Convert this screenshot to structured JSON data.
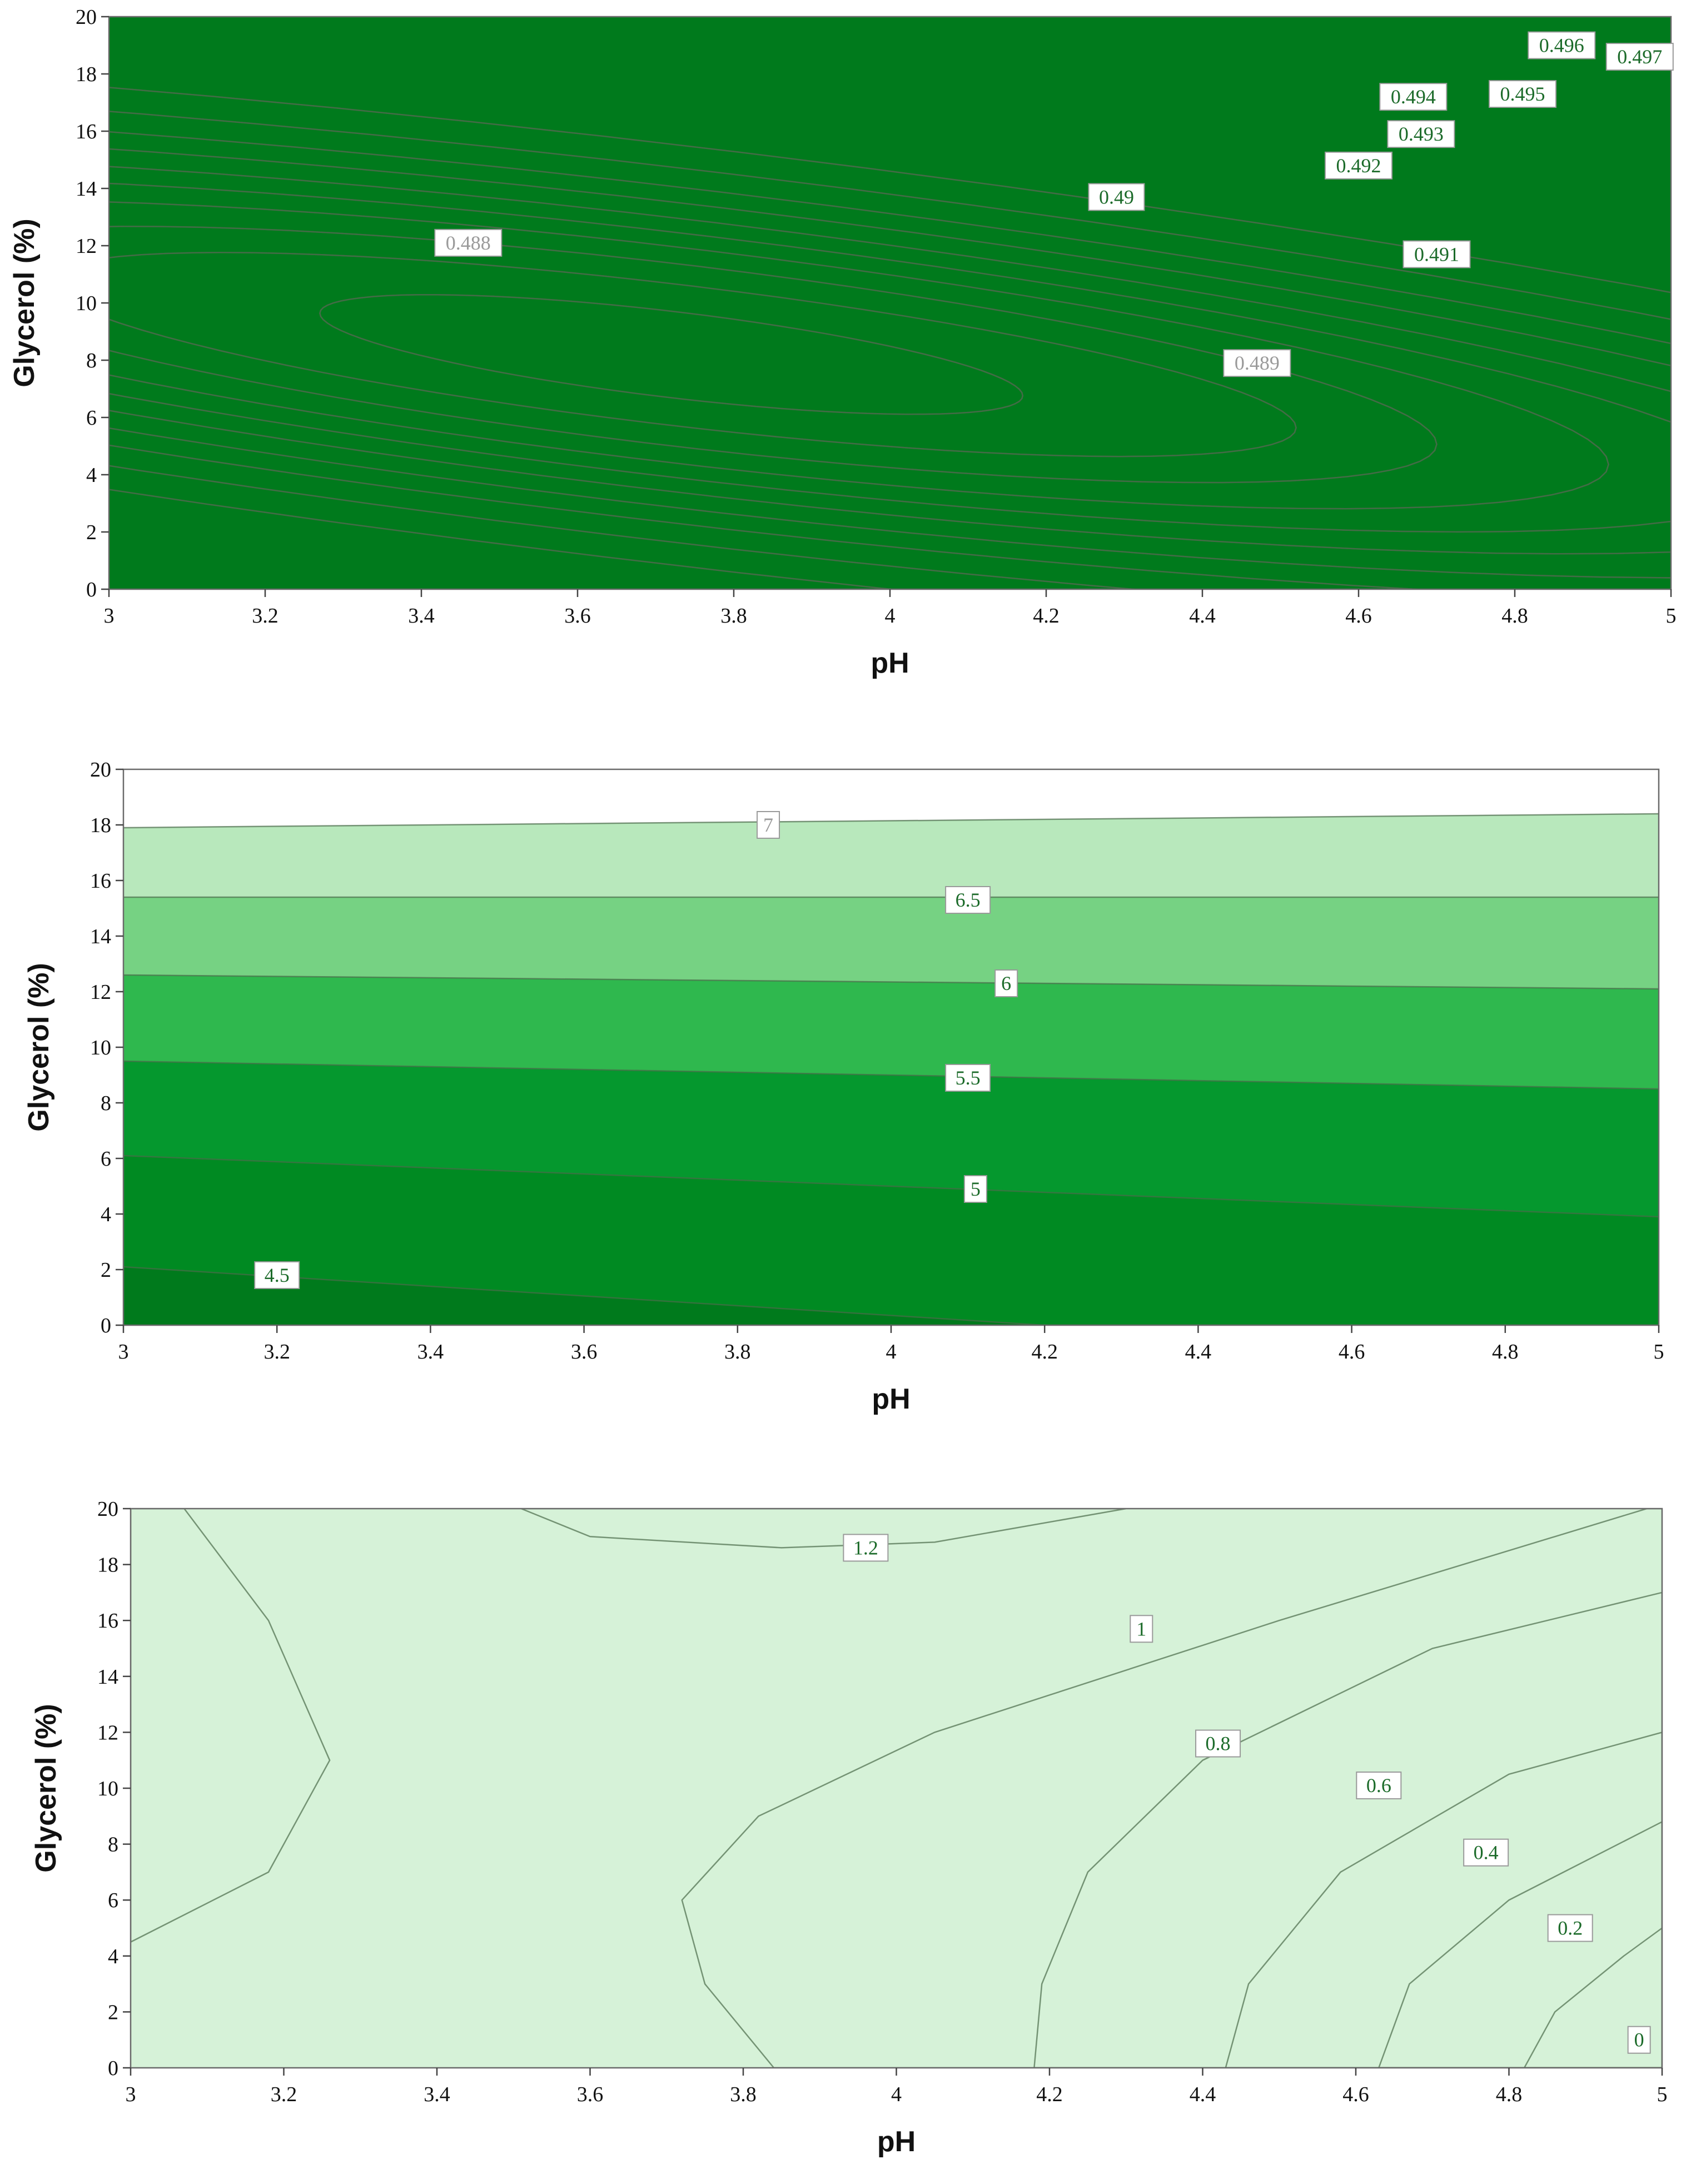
{
  "chart_data": [
    {
      "type": "contour",
      "title": "",
      "xlabel": "pH",
      "ylabel": "Glycerol (%)",
      "xlim": [
        3,
        5
      ],
      "ylim": [
        0,
        20
      ],
      "x_ticks": [
        "3",
        "3.2",
        "3.4",
        "3.6",
        "3.8",
        "4",
        "4.2",
        "4.4",
        "4.6",
        "4.8",
        "5"
      ],
      "y_ticks": [
        "0",
        "2",
        "4",
        "6",
        "8",
        "10",
        "12",
        "14",
        "16",
        "18",
        "20"
      ],
      "levels": [
        0.488,
        0.489,
        0.49,
        0.491,
        0.492,
        0.493,
        0.494,
        0.495,
        0.496,
        0.497
      ],
      "contour_labels": [
        {
          "text": "0.488",
          "x": 3.46,
          "y": 12.1
        },
        {
          "text": "0.489",
          "x": 4.47,
          "y": 7.9
        },
        {
          "text": "0.49",
          "x": 4.29,
          "y": 13.7
        },
        {
          "text": "0.491",
          "x": 4.7,
          "y": 11.7
        },
        {
          "text": "0.492",
          "x": 4.6,
          "y": 14.8
        },
        {
          "text": "0.493",
          "x": 4.68,
          "y": 15.9
        },
        {
          "text": "0.494",
          "x": 4.67,
          "y": 17.2
        },
        {
          "text": "0.495",
          "x": 4.81,
          "y": 17.3
        },
        {
          "text": "0.496",
          "x": 4.86,
          "y": 19.0
        },
        {
          "text": "0.497",
          "x": 4.96,
          "y": 18.6
        }
      ]
    },
    {
      "type": "contour",
      "title": "",
      "xlabel": "pH",
      "ylabel": "Glycerol (%)",
      "xlim": [
        3,
        5
      ],
      "ylim": [
        0,
        20
      ],
      "x_ticks": [
        "3",
        "3.2",
        "3.4",
        "3.6",
        "3.8",
        "4",
        "4.2",
        "4.4",
        "4.6",
        "4.8",
        "5"
      ],
      "y_ticks": [
        "0",
        "2",
        "4",
        "6",
        "8",
        "10",
        "12",
        "14",
        "16",
        "18",
        "20"
      ],
      "levels": [
        4.5,
        5,
        5.5,
        6,
        6.5,
        7
      ],
      "contour_labels": [
        {
          "text": "7",
          "x": 3.84,
          "y": 18.0
        },
        {
          "text": "6.5",
          "x": 4.1,
          "y": 15.3
        },
        {
          "text": "6",
          "x": 4.15,
          "y": 12.3
        },
        {
          "text": "5.5",
          "x": 4.1,
          "y": 8.9
        },
        {
          "text": "5",
          "x": 4.11,
          "y": 4.9
        },
        {
          "text": "4.5",
          "x": 3.2,
          "y": 1.8
        }
      ]
    },
    {
      "type": "contour",
      "title": "",
      "xlabel": "pH",
      "ylabel": "Glycerol (%)",
      "xlim": [
        3,
        5
      ],
      "ylim": [
        0,
        20
      ],
      "x_ticks": [
        "3",
        "3.2",
        "3.4",
        "3.6",
        "3.8",
        "4",
        "4.2",
        "4.4",
        "4.6",
        "4.8",
        "5"
      ],
      "y_ticks": [
        "0",
        "2",
        "4",
        "6",
        "8",
        "10",
        "12",
        "14",
        "16",
        "18",
        "20"
      ],
      "levels": [
        0,
        0.2,
        0.4,
        0.6,
        0.8,
        1,
        1.2
      ],
      "contour_labels": [
        {
          "text": "1.2",
          "x": 3.96,
          "y": 18.6
        },
        {
          "text": "1",
          "x": 4.32,
          "y": 15.7
        },
        {
          "text": "0.8",
          "x": 4.42,
          "y": 11.6
        },
        {
          "text": "0.6",
          "x": 4.63,
          "y": 10.1
        },
        {
          "text": "0.4",
          "x": 4.77,
          "y": 7.7
        },
        {
          "text": "0.2",
          "x": 4.88,
          "y": 5.0
        },
        {
          "text": "0",
          "x": 4.97,
          "y": 1.0
        }
      ]
    }
  ],
  "colors": {
    "band0": "#ffffff",
    "band1": "#d6f2d8",
    "band2": "#b8e8bc",
    "band3": "#98de9f",
    "band4": "#76d283",
    "band5": "#50c566",
    "band6": "#2fb84e",
    "band7": "#16aa3d",
    "band8": "#05982e",
    "band9": "#008a22",
    "band10": "#007a1c"
  }
}
